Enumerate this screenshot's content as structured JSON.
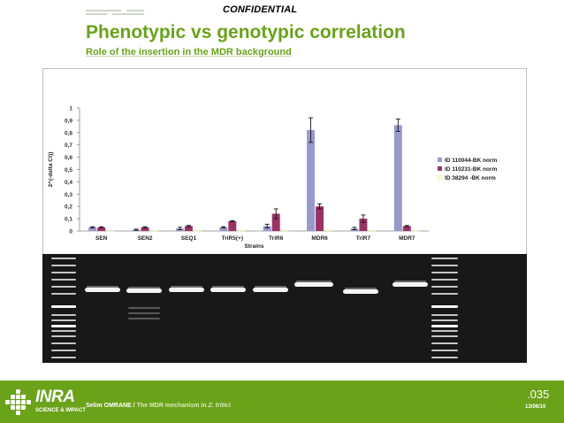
{
  "header": {
    "confidential": "CONFIDENTIAL",
    "title": "Phenotypic vs genotypic correlation",
    "subtitle": "Role of the insertion in the MDR background"
  },
  "chart_data": {
    "type": "bar",
    "xlabel": "Strains",
    "ylabel": "2^(-delta Ct))",
    "ylim": [
      0,
      1
    ],
    "yticks": [
      "0",
      "0,1",
      "0,2",
      "0,3",
      "0,4",
      "0,5",
      "0,6",
      "0,7",
      "0,8",
      "0,9",
      "1"
    ],
    "categories": [
      "SEN",
      "SEN2",
      "SEQ1",
      "TriR5(+)",
      "TriR6",
      "MDR6",
      "TriR7",
      "MDR7"
    ],
    "series": [
      {
        "name": "ID 110044-BK norm",
        "color": "#9999cc",
        "values": [
          0.03,
          0.01,
          0.02,
          0.03,
          0.04,
          0.82,
          0.02,
          0.86
        ],
        "errors": [
          0.005,
          0.005,
          0.01,
          0.005,
          0.015,
          0.1,
          0.01,
          0.05
        ]
      },
      {
        "name": "ID 110231-BK norm",
        "color": "#993366",
        "values": [
          0.03,
          0.03,
          0.04,
          0.08,
          0.14,
          0.2,
          0.1,
          0.04
        ],
        "errors": [
          0.005,
          0.005,
          0.005,
          0.005,
          0.04,
          0.02,
          0.03,
          0.005
        ]
      },
      {
        "name": "ID 38294 -BK norm",
        "color": "#ffffcc",
        "values": [
          0.003,
          0.003,
          0.003,
          0.003,
          0.005,
          0.01,
          0.005,
          0.003
        ],
        "errors": [
          0,
          0,
          0,
          0,
          0,
          0,
          0,
          0
        ]
      }
    ],
    "legend_position": "right",
    "grid": false
  },
  "gel": {
    "lanes": 10,
    "band_strength": [
      1,
      1,
      1,
      1,
      1,
      1,
      1,
      1
    ]
  },
  "footer": {
    "logo_text": "INRA",
    "logo_sub": "SCIENCE & IMPACT",
    "author": "Selim OMRANE / ",
    "subject": "The MDR mechanism in ",
    "subject_italic": "Z. tritici",
    "slide_number": ".035",
    "date": "13/06/10"
  },
  "colors": {
    "accent": "#6aa21a",
    "footer_bg": "#6aa21a"
  }
}
